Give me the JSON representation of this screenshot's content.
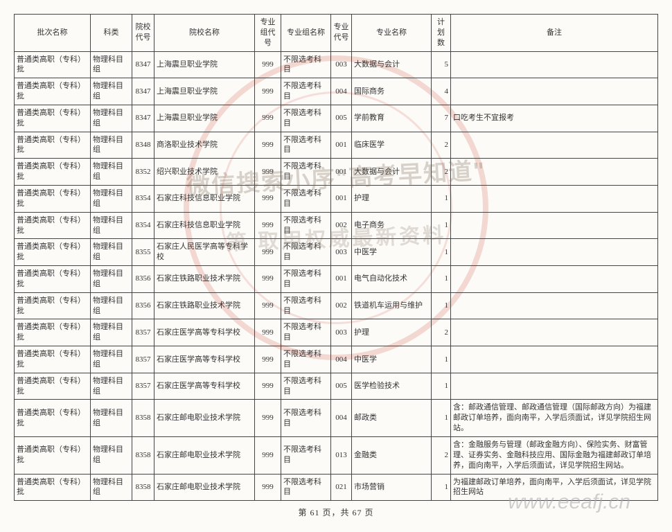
{
  "page": {
    "current": 61,
    "total": 67,
    "label_tpl": "第 {cur} 页，共 {tot} 页"
  },
  "watermarks": {
    "line1": "微信搜索小序\"高考早知道\"",
    "line2": "第  取用权威最新资料",
    "url": "www.eeafj.cn"
  },
  "columns": [
    {
      "key": "batch",
      "label": "批次名称",
      "cls": "col-batch"
    },
    {
      "key": "subj",
      "label": "科类",
      "cls": "col-subj"
    },
    {
      "key": "sc",
      "label": "院校代号",
      "cls": "col-sc"
    },
    {
      "key": "sname",
      "label": "院校名称",
      "cls": "col-sname"
    },
    {
      "key": "gc",
      "label": "专业组代号",
      "cls": "col-gc"
    },
    {
      "key": "gname",
      "label": "专业组名称",
      "cls": "col-gname"
    },
    {
      "key": "mc",
      "label": "专业代号",
      "cls": "col-mc"
    },
    {
      "key": "mname",
      "label": "专业名称",
      "cls": "col-mname"
    },
    {
      "key": "plan",
      "label": "计划数",
      "cls": "col-plan"
    },
    {
      "key": "note",
      "label": "备注",
      "cls": "col-note"
    }
  ],
  "rows": [
    {
      "batch": "普通类高职（专科）批",
      "subj": "物理科目组",
      "sc": "8347",
      "sname": "上海震旦职业学院",
      "gc": "999",
      "gname": "不限选考科目",
      "mc": "003",
      "mname": "大数据与会计",
      "plan": 5,
      "note": ""
    },
    {
      "batch": "普通类高职（专科）批",
      "subj": "物理科目组",
      "sc": "8347",
      "sname": "上海震旦职业学院",
      "gc": "999",
      "gname": "不限选考科目",
      "mc": "004",
      "mname": "国际商务",
      "plan": 4,
      "note": ""
    },
    {
      "batch": "普通类高职（专科）批",
      "subj": "物理科目组",
      "sc": "8347",
      "sname": "上海震旦职业学院",
      "gc": "999",
      "gname": "不限选考科目",
      "mc": "005",
      "mname": "学前教育",
      "plan": 7,
      "note": "口吃考生不宜报考"
    },
    {
      "batch": "普通类高职（专科）批",
      "subj": "物理科目组",
      "sc": "8348",
      "sname": "商洛职业技术学院",
      "gc": "999",
      "gname": "不限选考科目",
      "mc": "001",
      "mname": "临床医学",
      "plan": 2,
      "note": ""
    },
    {
      "batch": "普通类高职（专科）批",
      "subj": "物理科目组",
      "sc": "8352",
      "sname": "绍兴职业技术学院",
      "gc": "999",
      "gname": "不限选考科目",
      "mc": "001",
      "mname": "大数据与会计",
      "plan": 2,
      "note": ""
    },
    {
      "batch": "普通类高职（专科）批",
      "subj": "物理科目组",
      "sc": "8354",
      "sname": "石家庄科技信息职业学院",
      "gc": "999",
      "gname": "不限选考科目",
      "mc": "001",
      "mname": "护理",
      "plan": 1,
      "note": ""
    },
    {
      "batch": "普通类高职（专科）批",
      "subj": "物理科目组",
      "sc": "8354",
      "sname": "石家庄科技信息职业学院",
      "gc": "999",
      "gname": "不限选考科目",
      "mc": "002",
      "mname": "电子商务",
      "plan": 1,
      "note": ""
    },
    {
      "batch": "普通类高职（专科）批",
      "subj": "物理科目组",
      "sc": "8355",
      "sname": "石家庄人民医学高等专科学校",
      "gc": "999",
      "gname": "不限选考科目",
      "mc": "003",
      "mname": "中医学",
      "plan": 1,
      "note": ""
    },
    {
      "batch": "普通类高职（专科）批",
      "subj": "物理科目组",
      "sc": "8356",
      "sname": "石家庄铁路职业技术学院",
      "gc": "999",
      "gname": "不限选考科目",
      "mc": "001",
      "mname": "电气自动化技术",
      "plan": 1,
      "note": ""
    },
    {
      "batch": "普通类高职（专科）批",
      "subj": "物理科目组",
      "sc": "8356",
      "sname": "石家庄铁路职业技术学院",
      "gc": "999",
      "gname": "不限选考科目",
      "mc": "002",
      "mname": "铁道机车运用与维护",
      "plan": 1,
      "note": ""
    },
    {
      "batch": "普通类高职（专科）批",
      "subj": "物理科目组",
      "sc": "8357",
      "sname": "石家庄医学高等专科学校",
      "gc": "999",
      "gname": "不限选考科目",
      "mc": "003",
      "mname": "护理",
      "plan": 2,
      "note": ""
    },
    {
      "batch": "普通类高职（专科）批",
      "subj": "物理科目组",
      "sc": "8357",
      "sname": "石家庄医学高等专科学校",
      "gc": "999",
      "gname": "不限选考科目",
      "mc": "004",
      "mname": "中医学",
      "plan": 1,
      "note": ""
    },
    {
      "batch": "普通类高职（专科）批",
      "subj": "物理科目组",
      "sc": "8357",
      "sname": "石家庄医学高等专科学校",
      "gc": "999",
      "gname": "不限选考科目",
      "mc": "005",
      "mname": "医学检验技术",
      "plan": 1,
      "note": ""
    },
    {
      "batch": "普通类高职（专科）批",
      "subj": "物理科目组",
      "sc": "8358",
      "sname": "石家庄邮电职业技术学院",
      "gc": "999",
      "gname": "不限选考科目",
      "mc": "004",
      "mname": "邮政类",
      "plan": 1,
      "note": "含：邮政通信管理、邮政通信管理（国际邮政方向）为福建邮政订单培养，面向南平，入学后须面试，详见学院招生网站。"
    },
    {
      "batch": "普通类高职（专科）批",
      "subj": "物理科目组",
      "sc": "8358",
      "sname": "石家庄邮电职业技术学院",
      "gc": "999",
      "gname": "不限选考科目",
      "mc": "013",
      "mname": "金融类",
      "plan": 2,
      "note": "含：金融服务与管理（邮政金融方向）、保险实务、财富管理、证券实务、金融科技应用、国际金融为福建邮政订单培养，面向南平，入学后须面试，详见学院招生网站。"
    },
    {
      "batch": "普通类高职（专科）批",
      "subj": "物理科目组",
      "sc": "8358",
      "sname": "石家庄邮电职业技术学院",
      "gc": "999",
      "gname": "不限选考科目",
      "mc": "021",
      "mname": "市场营销",
      "plan": 1,
      "note": "为福建邮政订单培养，面向南平，入学后须面试，详见学院招生网站"
    }
  ],
  "style": {
    "border_color": "#444444",
    "bg_color": "#fdfbf8",
    "text_color": "#333333",
    "header_fontsize": 11,
    "body_fontsize": 11,
    "seal_color": "rgba(200,60,40,0.18)"
  }
}
